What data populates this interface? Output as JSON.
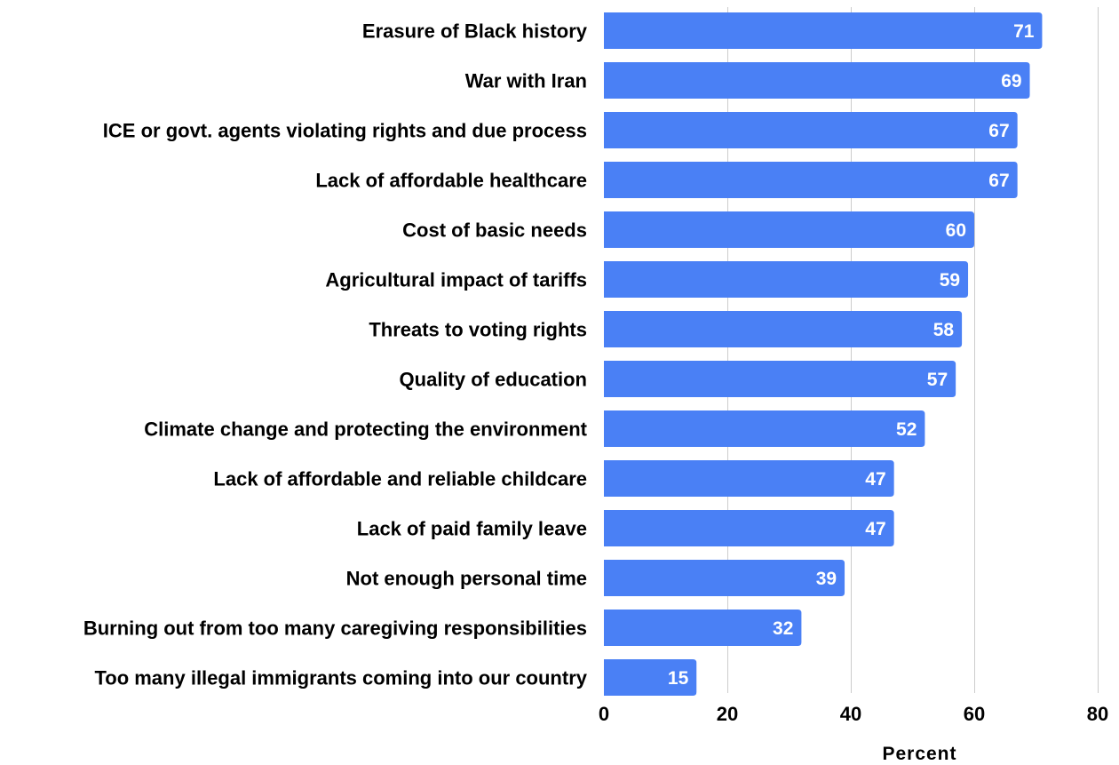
{
  "chart_data": {
    "type": "bar",
    "orientation": "horizontal",
    "title": "",
    "xlabel": "Percent",
    "ylabel": "",
    "xlim": [
      0,
      80
    ],
    "x_ticks": [
      0,
      20,
      40,
      60,
      80
    ],
    "grid": true,
    "bar_color": "#4a80f5",
    "categories": [
      "Erasure of Black history",
      "War with Iran",
      "ICE or govt. agents violating rights and due process",
      "Lack of affordable healthcare",
      "Cost of basic needs",
      "Agricultural impact of tariffs",
      "Threats to voting rights",
      "Quality of education",
      "Climate change and protecting the environment",
      "Lack of affordable and reliable childcare",
      "Lack of paid family leave",
      "Not enough personal time",
      "Burning out from too many caregiving responsibilities",
      "Too many illegal immigrants coming into our country"
    ],
    "values": [
      71,
      69,
      67,
      67,
      60,
      59,
      58,
      57,
      52,
      47,
      47,
      39,
      32,
      15
    ]
  }
}
